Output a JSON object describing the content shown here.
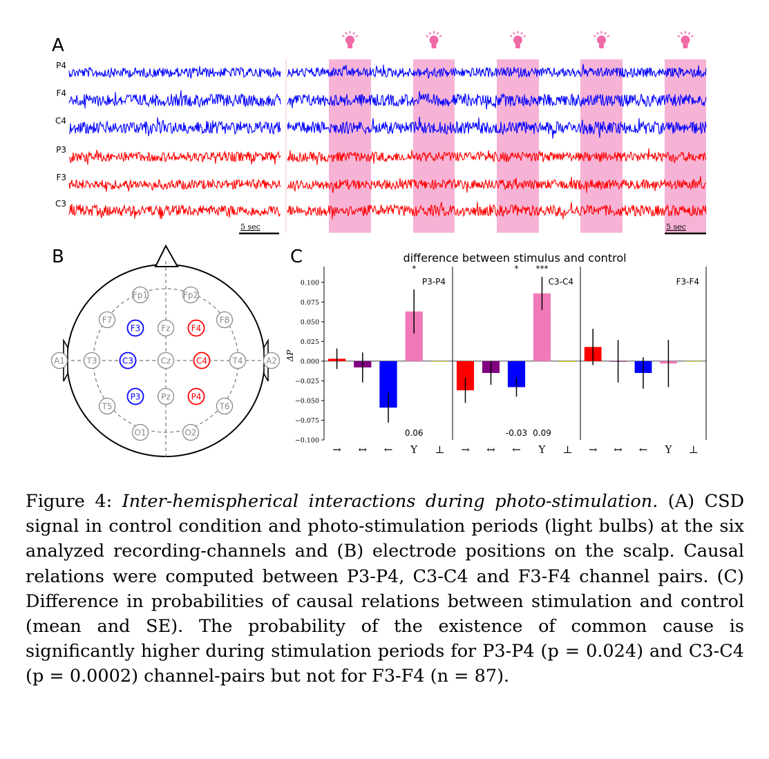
{
  "panel_labels": {
    "a": "A",
    "b": "B",
    "c": "C"
  },
  "panel_a": {
    "channels": [
      {
        "label": "P4",
        "color": "#0000ff",
        "amp": 7
      },
      {
        "label": "F4",
        "color": "#0000ff",
        "amp": 9
      },
      {
        "label": "C4",
        "color": "#0000ff",
        "amp": 9
      },
      {
        "label": "P3",
        "color": "#ff0000",
        "amp": 7
      },
      {
        "label": "F3",
        "color": "#ff0000",
        "amp": 7
      },
      {
        "label": "C3",
        "color": "#ff0000",
        "amp": 8
      }
    ],
    "scale_bar_label": "5 sec",
    "stimulation_color": "#f6b3d6",
    "bulb_color": "#f06aa8",
    "stimulation_count": 5
  },
  "panel_b": {
    "electrodes": [
      {
        "label": "Fp1",
        "color": "#888888"
      },
      {
        "label": "Fp2",
        "color": "#888888"
      },
      {
        "label": "F7",
        "color": "#888888"
      },
      {
        "label": "F3",
        "color": "#0000ff"
      },
      {
        "label": "Fz",
        "color": "#888888"
      },
      {
        "label": "F4",
        "color": "#ff0000"
      },
      {
        "label": "F8",
        "color": "#888888"
      },
      {
        "label": "A1",
        "color": "#888888"
      },
      {
        "label": "T3",
        "color": "#888888"
      },
      {
        "label": "C3",
        "color": "#0000ff"
      },
      {
        "label": "Cz",
        "color": "#888888"
      },
      {
        "label": "C4",
        "color": "#ff0000"
      },
      {
        "label": "T4",
        "color": "#888888"
      },
      {
        "label": "A2",
        "color": "#888888"
      },
      {
        "label": "T5",
        "color": "#888888"
      },
      {
        "label": "P3",
        "color": "#0000ff"
      },
      {
        "label": "Pz",
        "color": "#888888"
      },
      {
        "label": "P4",
        "color": "#ff0000"
      },
      {
        "label": "T6",
        "color": "#888888"
      },
      {
        "label": "O1",
        "color": "#888888"
      },
      {
        "label": "O2",
        "color": "#888888"
      }
    ]
  },
  "chart_data": {
    "type": "bar",
    "title": "difference between stimulus and control",
    "ylabel": "ΔP",
    "ylim": [
      -0.1,
      0.12
    ],
    "yticks": [
      -0.1,
      -0.075,
      -0.05,
      -0.025,
      0.0,
      0.025,
      0.05,
      0.075,
      0.1
    ],
    "ytick_labels": [
      "−0.100",
      "−0.075",
      "−0.050",
      "−0.025",
      "0.000",
      "0.025",
      "0.050",
      "0.075",
      "0.100"
    ],
    "categories": [
      "→",
      "↔",
      "←",
      "Y",
      "⊥"
    ],
    "colors": [
      "#ff0000",
      "#800080",
      "#0000ff",
      "#f07ab8",
      "#cccc00"
    ],
    "groups": [
      {
        "name": "P3-P4",
        "values": [
          0.003,
          -0.008,
          -0.059,
          0.063,
          0.0
        ],
        "errors": [
          0.013,
          0.019,
          0.019,
          0.028,
          0.0
        ],
        "stars": [
          "",
          "",
          "",
          "*",
          ""
        ],
        "value_labels": [
          "",
          "",
          "",
          "0.06",
          ""
        ]
      },
      {
        "name": "C3-C4",
        "values": [
          -0.037,
          -0.015,
          -0.033,
          0.086,
          -0.001
        ],
        "errors": [
          0.016,
          0.015,
          0.012,
          0.021,
          0.0
        ],
        "stars": [
          "",
          "",
          "*",
          "***",
          ""
        ],
        "value_labels": [
          "",
          "",
          "-0.03",
          "0.09",
          ""
        ]
      },
      {
        "name": "F3-F4",
        "values": [
          0.018,
          0.0,
          -0.015,
          -0.003,
          0.0
        ],
        "errors": [
          0.023,
          0.027,
          0.02,
          0.03,
          0.0
        ],
        "stars": [
          "",
          "",
          "",
          "",
          ""
        ],
        "value_labels": [
          "",
          "",
          "",
          "",
          ""
        ]
      }
    ],
    "grid": false
  },
  "caption": {
    "prefix": "Figure 4:",
    "title": "Inter-hemispherical interactions during photo-stimulation.",
    "body": "(A) CSD signal in control condition and photo-stimulation periods (light bulbs) at the six analyzed recording-channels and (B) electrode positions on the scalp. Causal relations were computed between P3-P4, C3-C4 and F3-F4 channel pairs. (C) Difference in probabilities of causal relations between stimulation and control (mean and SE). The probability of the existence of common cause is significantly higher during stimulation periods for P3-P4 (p = 0.024) and C3-C4 (p = 0.0002) channel-pairs but not for F3-F4 (n = 87)."
  }
}
